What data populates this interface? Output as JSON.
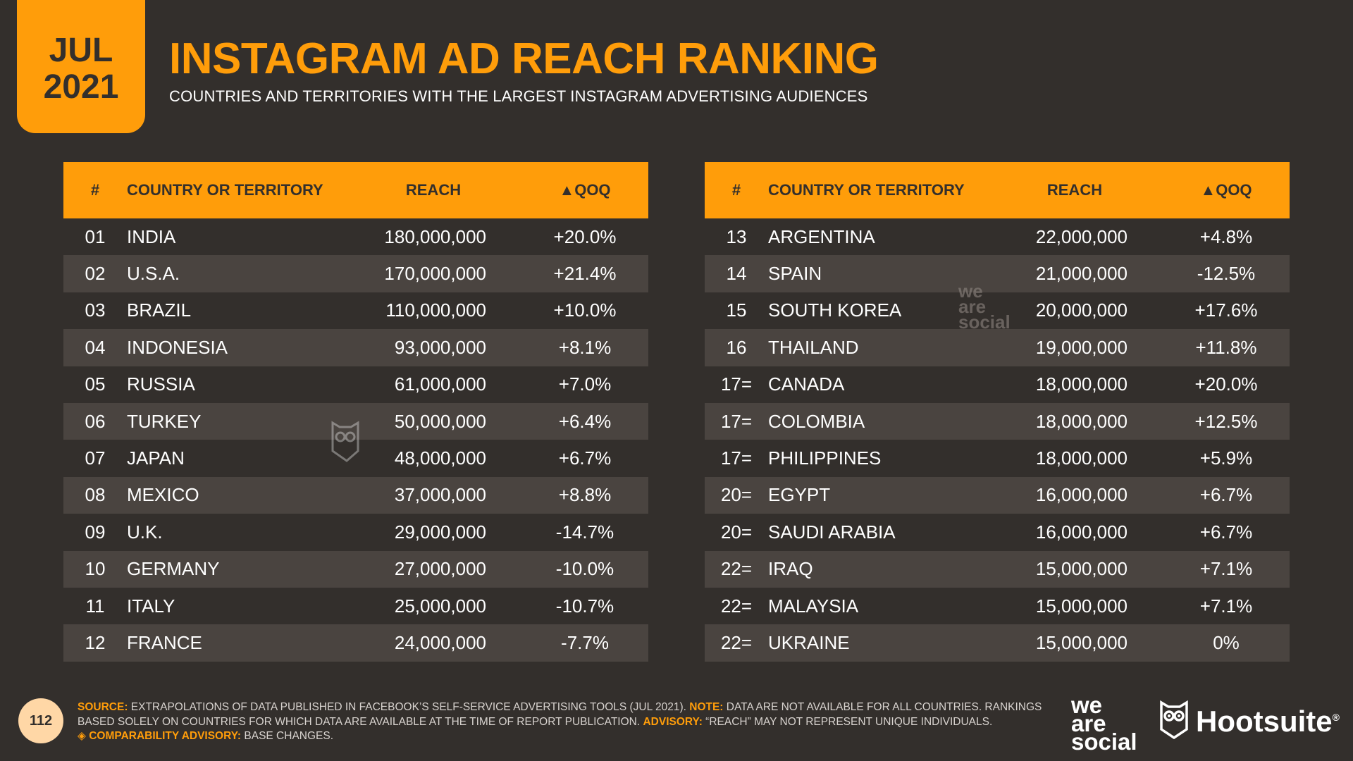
{
  "date_tab": {
    "month": "JUL",
    "year": "2021"
  },
  "title": "INSTAGRAM AD REACH RANKING",
  "subtitle": "COUNTRIES AND TERRITORIES WITH THE LARGEST INSTAGRAM ADVERTISING AUDIENCES",
  "headers": {
    "num": "#",
    "country": "COUNTRY OR TERRITORY",
    "reach": "REACH",
    "qoq": "▲QOQ"
  },
  "left_table": [
    {
      "rank": "01",
      "country": "INDIA",
      "reach": "180,000,000",
      "qoq": "+20.0%"
    },
    {
      "rank": "02",
      "country": "U.S.A.",
      "reach": "170,000,000",
      "qoq": "+21.4%"
    },
    {
      "rank": "03",
      "country": "BRAZIL",
      "reach": "110,000,000",
      "qoq": "+10.0%"
    },
    {
      "rank": "04",
      "country": "INDONESIA",
      "reach": "93,000,000",
      "qoq": "+8.1%"
    },
    {
      "rank": "05",
      "country": "RUSSIA",
      "reach": "61,000,000",
      "qoq": "+7.0%"
    },
    {
      "rank": "06",
      "country": "TURKEY",
      "reach": "50,000,000",
      "qoq": "+6.4%"
    },
    {
      "rank": "07",
      "country": "JAPAN",
      "reach": "48,000,000",
      "qoq": "+6.7%"
    },
    {
      "rank": "08",
      "country": "MEXICO",
      "reach": "37,000,000",
      "qoq": "+8.8%"
    },
    {
      "rank": "09",
      "country": "U.K.",
      "reach": "29,000,000",
      "qoq": "-14.7%"
    },
    {
      "rank": "10",
      "country": "GERMANY",
      "reach": "27,000,000",
      "qoq": "-10.0%"
    },
    {
      "rank": "11",
      "country": "ITALY",
      "reach": "25,000,000",
      "qoq": "-10.7%"
    },
    {
      "rank": "12",
      "country": "FRANCE",
      "reach": "24,000,000",
      "qoq": "-7.7%"
    }
  ],
  "right_table": [
    {
      "rank": "13",
      "country": "ARGENTINA",
      "reach": "22,000,000",
      "qoq": "+4.8%"
    },
    {
      "rank": "14",
      "country": "SPAIN",
      "reach": "21,000,000",
      "qoq": "-12.5%"
    },
    {
      "rank": "15",
      "country": "SOUTH KOREA",
      "reach": "20,000,000",
      "qoq": "+17.6%"
    },
    {
      "rank": "16",
      "country": "THAILAND",
      "reach": "19,000,000",
      "qoq": "+11.8%"
    },
    {
      "rank": "17=",
      "country": "CANADA",
      "reach": "18,000,000",
      "qoq": "+20.0%"
    },
    {
      "rank": "17=",
      "country": "COLOMBIA",
      "reach": "18,000,000",
      "qoq": "+12.5%"
    },
    {
      "rank": "17=",
      "country": "PHILIPPINES",
      "reach": "18,000,000",
      "qoq": "+5.9%"
    },
    {
      "rank": "20=",
      "country": "EGYPT",
      "reach": "16,000,000",
      "qoq": "+6.7%"
    },
    {
      "rank": "20=",
      "country": "SAUDI ARABIA",
      "reach": "16,000,000",
      "qoq": "+6.7%"
    },
    {
      "rank": "22=",
      "country": "IRAQ",
      "reach": "15,000,000",
      "qoq": "+7.1%"
    },
    {
      "rank": "22=",
      "country": "MALAYSIA",
      "reach": "15,000,000",
      "qoq": "+7.1%"
    },
    {
      "rank": "22=",
      "country": "UKRAINE",
      "reach": "15,000,000",
      "qoq": "0%"
    }
  ],
  "watermark_text": [
    "we",
    "are",
    "social"
  ],
  "page_number": "112",
  "footnote": {
    "source_label": "SOURCE:",
    "source_text": " EXTRAPOLATIONS OF DATA PUBLISHED IN FACEBOOK’S SELF-SERVICE ADVERTISING TOOLS (JUL 2021). ",
    "note_label": "NOTE:",
    "note_text": " DATA ARE NOT AVAILABLE FOR ALL COUNTRIES. RANKINGS BASED SOLELY ON COUNTRIES FOR WHICH DATA ARE AVAILABLE AT THE TIME OF REPORT PUBLICATION. ",
    "advisory_label": "ADVISORY:",
    "advisory_text": " “REACH” MAY NOT REPRESENT UNIQUE INDIVIDUALS.",
    "comparability_label": "◈ COMPARABILITY ADVISORY:",
    "comparability_text": " BASE CHANGES."
  },
  "brand_was": [
    "we",
    "are",
    "social"
  ],
  "brand_hootsuite": "Hootsuite",
  "brand_reg": "®",
  "colors": {
    "background": "#332f2c",
    "accent": "#ff9d0a",
    "row_alt": "#4a4440"
  },
  "icons": [
    "hootsuite-owl-icon"
  ]
}
